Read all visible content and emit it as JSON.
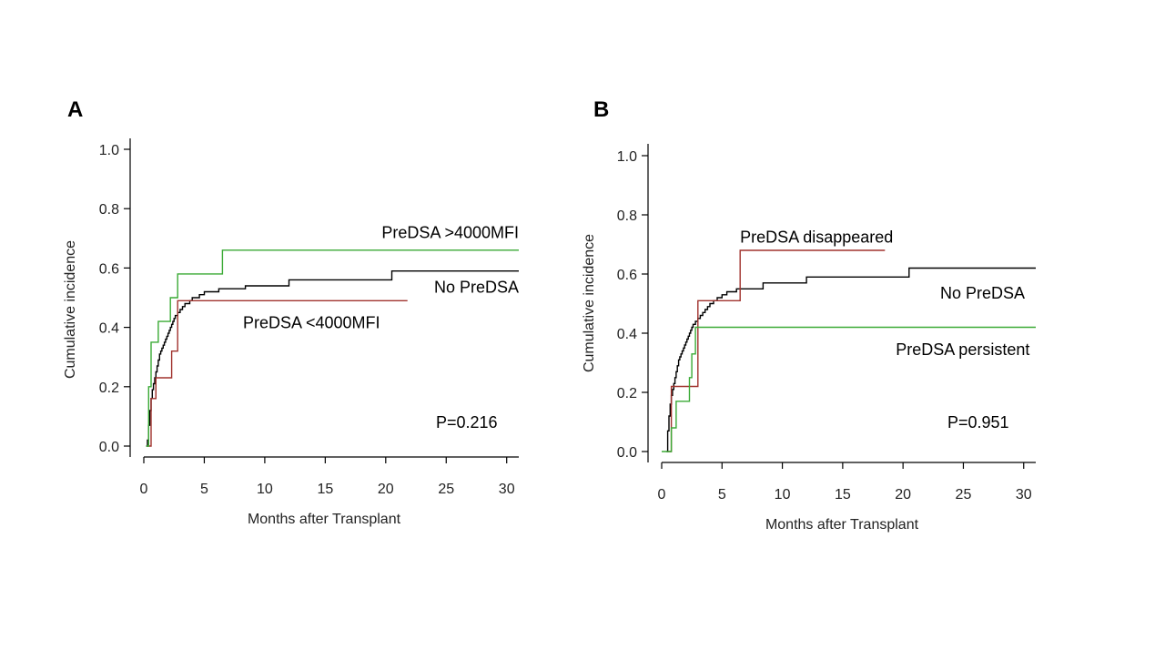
{
  "chart_data": [
    {
      "type": "line",
      "panel": "A",
      "xlabel": "Months after Transplant",
      "ylabel": "Cumulative incidence",
      "xlim": [
        0,
        31
      ],
      "ylim": [
        0,
        1.0
      ],
      "xticks": [
        0,
        5,
        10,
        15,
        20,
        25,
        30
      ],
      "yticks": [
        "0.0",
        "0.2",
        "0.4",
        "0.6",
        "0.8",
        "1.0"
      ],
      "pvalue": "P=0.216",
      "series": [
        {
          "name": "No PreDSA",
          "color": "#000000",
          "label_anchor": {
            "x": 31,
            "y": 0.535,
            "align": "end"
          },
          "x": [
            0.2,
            0.3,
            0.4,
            0.5,
            0.6,
            0.7,
            0.8,
            0.9,
            1.0,
            1.1,
            1.2,
            1.3,
            1.4,
            1.5,
            1.6,
            1.7,
            1.8,
            1.9,
            2.0,
            2.1,
            2.2,
            2.3,
            2.4,
            2.5,
            2.6,
            2.8,
            3.0,
            3.2,
            3.4,
            3.6,
            3.8,
            4.0,
            4.3,
            4.6,
            5.0,
            5.4,
            6.2,
            8.4,
            12.0,
            20.5,
            31.0
          ],
          "y": [
            0.0,
            0.02,
            0.07,
            0.12,
            0.16,
            0.19,
            0.21,
            0.23,
            0.25,
            0.27,
            0.29,
            0.31,
            0.32,
            0.33,
            0.34,
            0.35,
            0.36,
            0.37,
            0.38,
            0.39,
            0.4,
            0.41,
            0.42,
            0.43,
            0.44,
            0.45,
            0.46,
            0.47,
            0.48,
            0.48,
            0.49,
            0.5,
            0.5,
            0.51,
            0.52,
            0.52,
            0.53,
            0.54,
            0.56,
            0.59,
            0.59
          ]
        },
        {
          "name": "PreDSA <4000MFI",
          "color": "#A0322D",
          "label_anchor": {
            "x": 8.2,
            "y": 0.415,
            "align": "start"
          },
          "x": [
            0.3,
            0.6,
            1.0,
            2.3,
            2.8,
            21.8
          ],
          "y": [
            0.0,
            0.16,
            0.23,
            0.32,
            0.49,
            0.49
          ]
        },
        {
          "name": "PreDSA >4000MFI",
          "color": "#3AAA35",
          "label_anchor": {
            "x": 31,
            "y": 0.72,
            "align": "end"
          },
          "x": [
            0.2,
            0.4,
            0.6,
            1.2,
            2.2,
            2.8,
            6.5,
            31.0
          ],
          "y": [
            0.0,
            0.2,
            0.35,
            0.42,
            0.5,
            0.58,
            0.66,
            0.66
          ]
        }
      ]
    },
    {
      "type": "line",
      "panel": "B",
      "xlabel": "Months after Transplant",
      "ylabel": "Cumulative incidence",
      "xlim": [
        0,
        31
      ],
      "ylim": [
        0,
        1.0
      ],
      "xticks": [
        0,
        5,
        10,
        15,
        20,
        25,
        30
      ],
      "yticks": [
        "0.0",
        "0.2",
        "0.4",
        "0.6",
        "0.8",
        "1.0"
      ],
      "pvalue": "P=0.951",
      "series": [
        {
          "name": "No PreDSA",
          "color": "#000000",
          "label_anchor": {
            "x": 30.1,
            "y": 0.535,
            "align": "end"
          },
          "x": [
            0.4,
            0.5,
            0.6,
            0.7,
            0.8,
            0.9,
            1.0,
            1.1,
            1.2,
            1.3,
            1.4,
            1.5,
            1.6,
            1.7,
            1.8,
            1.9,
            2.0,
            2.1,
            2.2,
            2.3,
            2.4,
            2.5,
            2.6,
            2.8,
            3.0,
            3.2,
            3.4,
            3.6,
            3.8,
            4.0,
            4.3,
            4.6,
            5.0,
            5.4,
            6.2,
            8.4,
            12.0,
            20.5,
            31.0
          ],
          "y": [
            0.0,
            0.07,
            0.12,
            0.16,
            0.19,
            0.21,
            0.23,
            0.25,
            0.27,
            0.29,
            0.31,
            0.32,
            0.33,
            0.34,
            0.35,
            0.36,
            0.37,
            0.38,
            0.39,
            0.4,
            0.41,
            0.42,
            0.43,
            0.44,
            0.45,
            0.46,
            0.47,
            0.48,
            0.49,
            0.5,
            0.51,
            0.52,
            0.53,
            0.54,
            0.55,
            0.57,
            0.59,
            0.62,
            0.62
          ]
        },
        {
          "name": "PreDSA disappeared",
          "color": "#A0322D",
          "label_anchor": {
            "x": 6.5,
            "y": 0.725,
            "align": "start"
          },
          "x": [
            0.5,
            0.8,
            3.0,
            6.5,
            18.5
          ],
          "y": [
            0.0,
            0.22,
            0.51,
            0.68,
            0.68
          ]
        },
        {
          "name": "PreDSA persistent",
          "color": "#3AAA35",
          "label_anchor": {
            "x": 30.5,
            "y": 0.345,
            "align": "end"
          },
          "x": [
            0.0,
            0.4,
            0.8,
            1.2,
            2.3,
            2.5,
            2.8,
            3.1,
            31.0
          ],
          "y": [
            0.0,
            0.0,
            0.08,
            0.17,
            0.25,
            0.33,
            0.42,
            0.42,
            0.42
          ]
        }
      ]
    }
  ]
}
